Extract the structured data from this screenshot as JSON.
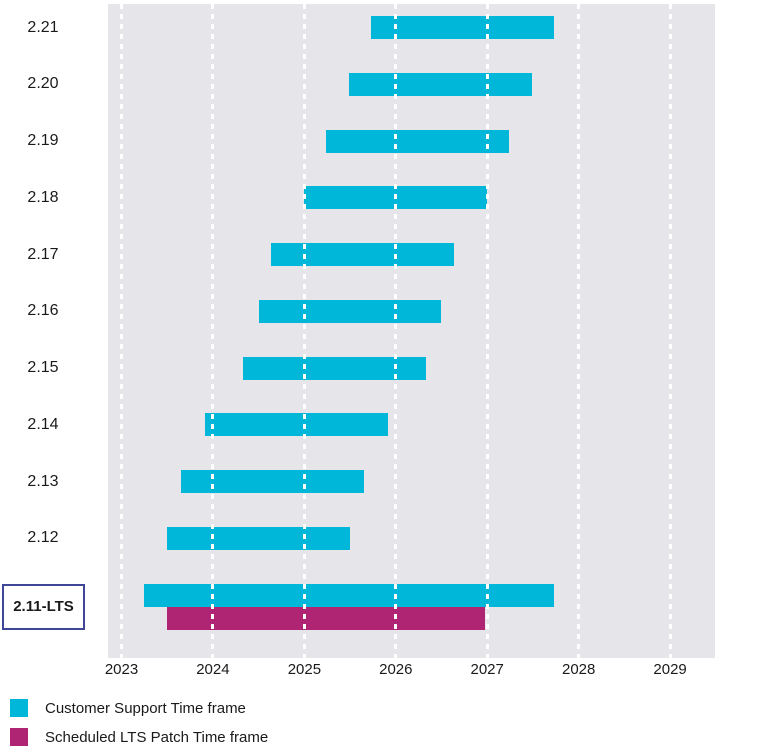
{
  "chart_data": {
    "type": "gantt",
    "title": "",
    "x_axis": {
      "tick_years": [
        2023,
        2024,
        2025,
        2026,
        2027,
        2028,
        2029
      ],
      "domain": [
        2022.85,
        2029.49
      ]
    },
    "grid": "vertical-dashed-white-over-bars",
    "legend_position": "bottom-left",
    "series": [
      {
        "id": "customer_support",
        "label": "Customer Support Time frame",
        "color": "#00b7d9"
      },
      {
        "id": "lts_patch",
        "label": "Scheduled LTS Patch Time frame",
        "color": "#b02573"
      }
    ],
    "rows": [
      {
        "label": "2.21",
        "highlighted": false,
        "bars": [
          {
            "series": "customer_support",
            "start": 2025.73,
            "end": 2027.73
          }
        ]
      },
      {
        "label": "2.20",
        "highlighted": false,
        "bars": [
          {
            "series": "customer_support",
            "start": 2025.49,
            "end": 2027.49
          }
        ]
      },
      {
        "label": "2.19",
        "highlighted": false,
        "bars": [
          {
            "series": "customer_support",
            "start": 2025.24,
            "end": 2027.24
          }
        ]
      },
      {
        "label": "2.18",
        "highlighted": false,
        "bars": [
          {
            "series": "customer_support",
            "start": 2025.0,
            "end": 2027.0
          }
        ]
      },
      {
        "label": "2.17",
        "highlighted": false,
        "bars": [
          {
            "series": "customer_support",
            "start": 2024.64,
            "end": 2026.64
          }
        ]
      },
      {
        "label": "2.16",
        "highlighted": false,
        "bars": [
          {
            "series": "customer_support",
            "start": 2024.5,
            "end": 2026.5
          }
        ]
      },
      {
        "label": "2.15",
        "highlighted": false,
        "bars": [
          {
            "series": "customer_support",
            "start": 2024.33,
            "end": 2026.33
          }
        ]
      },
      {
        "label": "2.14",
        "highlighted": false,
        "bars": [
          {
            "series": "customer_support",
            "start": 2023.91,
            "end": 2025.91
          }
        ]
      },
      {
        "label": "2.13",
        "highlighted": false,
        "bars": [
          {
            "series": "customer_support",
            "start": 2023.65,
            "end": 2025.65
          }
        ]
      },
      {
        "label": "2.12",
        "highlighted": false,
        "bars": [
          {
            "series": "customer_support",
            "start": 2023.5,
            "end": 2025.5
          }
        ]
      },
      {
        "label": "2.11-LTS",
        "highlighted": true,
        "bars": [
          {
            "series": "customer_support",
            "start": 2023.25,
            "end": 2027.73
          },
          {
            "series": "lts_patch",
            "start": 2023.5,
            "end": 2026.98
          }
        ]
      }
    ]
  },
  "colors": {
    "customer_support": "#00b7d9",
    "lts_patch": "#b02573",
    "plot_background": "#e6e5ea",
    "gridline": "#ffffff",
    "highlight_box_border": "#3f4695",
    "text": "#1a1a1a"
  }
}
